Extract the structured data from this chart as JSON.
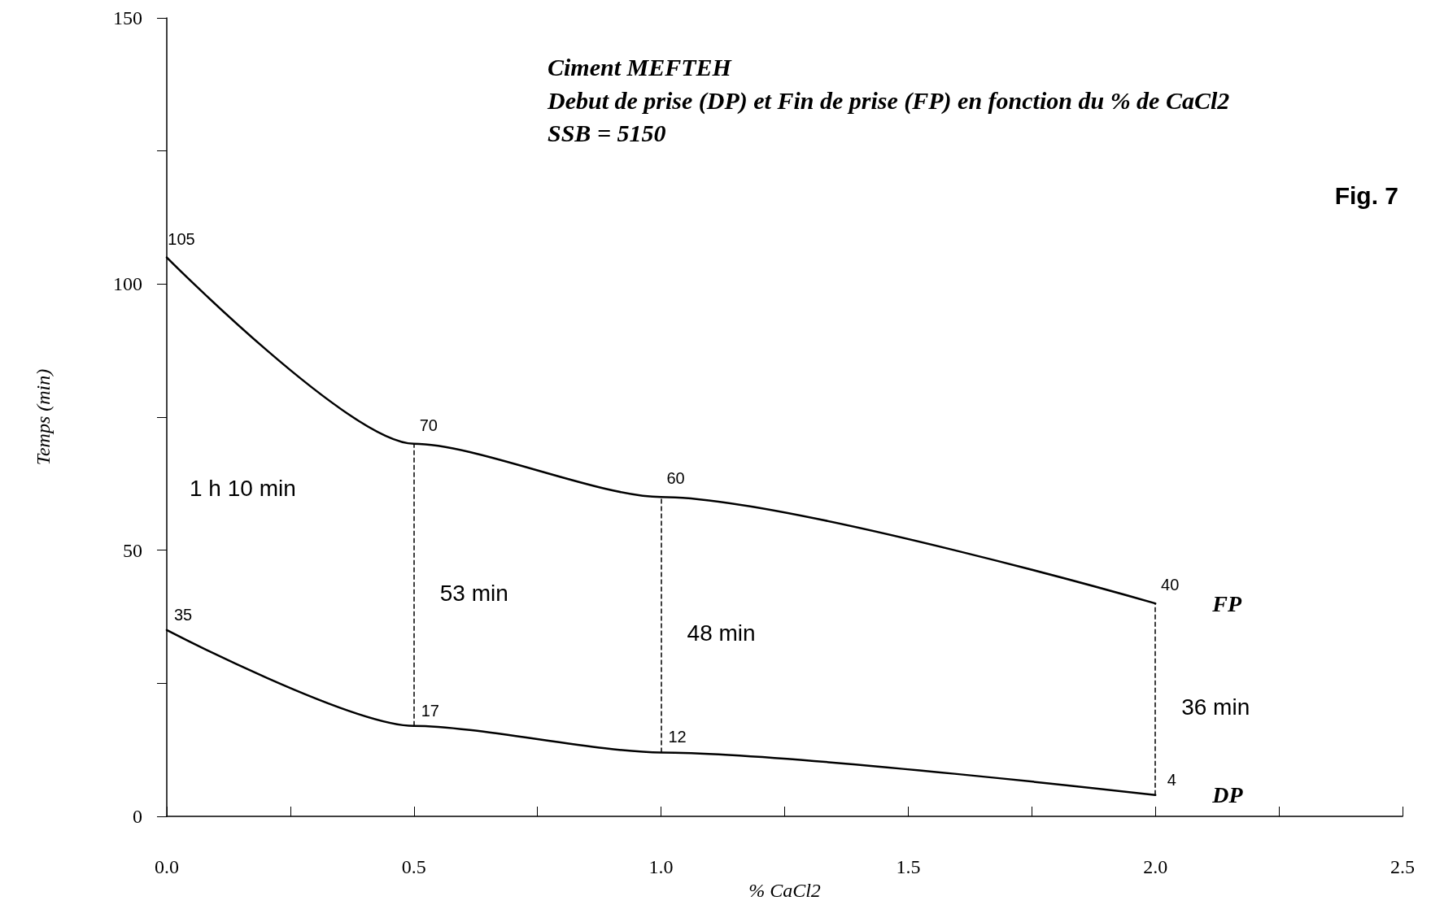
{
  "chart_data": {
    "type": "line",
    "title": "Ciment MEFTEH",
    "subtitle": "Debut de prise (DP) et Fin de prise (FP) en fonction du % de CaCl2\nSSB = 5150",
    "xlabel": "% CaCl2",
    "ylabel": "Temps (min)",
    "x": [
      0,
      0.5,
      1,
      2
    ],
    "series": [
      {
        "name": "FP",
        "color": "#000000",
        "values": [
          105,
          70,
          60,
          40
        ]
      },
      {
        "name": "DP",
        "color": "#000000",
        "values": [
          35,
          17,
          12,
          4
        ]
      }
    ],
    "data_labels": true,
    "xlim": [
      0,
      2.5
    ],
    "xticks": [
      {
        "value": 0,
        "label": "0.0"
      },
      {
        "value": 0.25,
        "label": null
      },
      {
        "value": 0.5,
        "label": "0.5"
      },
      {
        "value": 0.75,
        "label": null
      },
      {
        "value": 1,
        "label": "1.0"
      },
      {
        "value": 1.25,
        "label": null
      },
      {
        "value": 1.5,
        "label": "1.5"
      },
      {
        "value": 1.75,
        "label": null
      },
      {
        "value": 2,
        "label": "2.0"
      },
      {
        "value": 2.25,
        "label": null
      },
      {
        "value": 2.5,
        "label": "2.5"
      }
    ],
    "ylim": [
      0,
      150
    ],
    "yticks": [
      0,
      {
        "value": 25,
        "label": null
      },
      50,
      {
        "value": 75,
        "label": null
      },
      100,
      {
        "value": 125,
        "label": null
      },
      150
    ],
    "ref_lines": [
      {
        "axis": "x",
        "value": 0.5,
        "line_style": "dashed",
        "color": "#000000"
      },
      {
        "axis": "x",
        "value": 1,
        "line_style": "dashed",
        "color": "#000000"
      },
      {
        "axis": "x",
        "value": 2,
        "line_style": "dashed",
        "color": "#000000"
      }
    ],
    "annotations": [
      "1 h 10 min",
      "53 min",
      "48 min",
      "36 min",
      "Fig. 7"
    ],
    "grid": false,
    "legend": false,
    "marker": "none",
    "line_style": "solid"
  }
}
